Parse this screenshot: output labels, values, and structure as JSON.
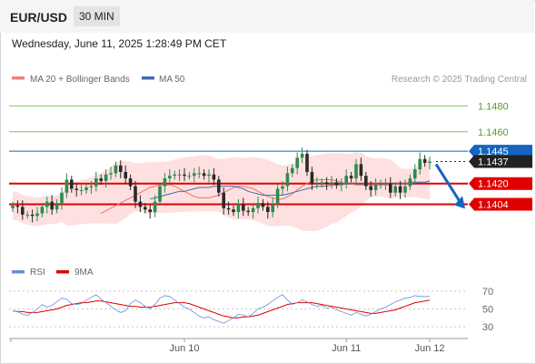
{
  "header": {
    "symbol": "EUR/USD",
    "timeframe": "30 MIN",
    "datetime": "Wednesday, June 11, 2025 1:28:49 PM CET"
  },
  "legend": {
    "bb_label": "MA 20 + Bollinger Bands",
    "ma50_label": "MA 50",
    "credit": "Research © 2025 Trading Central",
    "rsi_label": "RSI",
    "ma9_label": "9MA"
  },
  "colors": {
    "bb_fill": "#fdd5d5",
    "bb_legend": "#f08080",
    "ma20": "#f07070",
    "ma50": "#3a6db0",
    "up": "#2d8a4e",
    "down": "#2a2a2a",
    "resistance": "#e00000",
    "target": "#1565c0",
    "green_level": "#7ec850",
    "rsi_line": "#6a8fd8",
    "rsi_ma": "#e00000"
  },
  "chart_data": [
    {
      "type": "candlestick",
      "title": "",
      "ylim": [
        1.1365,
        1.1495
      ],
      "x_tick_labels": [
        "Jun 10",
        "Jun 11",
        "Jun 12"
      ],
      "x_tick_index": [
        35,
        68,
        85
      ],
      "levels": [
        {
          "value": 1.148,
          "label": "1.1480",
          "style": "green"
        },
        {
          "value": 1.146,
          "label": "1.1460",
          "style": "green"
        },
        {
          "value": 1.1445,
          "label": "1.1445",
          "style": "blue"
        },
        {
          "value": 1.1437,
          "label": "1.1437",
          "style": "current"
        },
        {
          "value": 1.142,
          "label": "1.1420",
          "style": "red"
        },
        {
          "value": 1.1404,
          "label": "1.1404",
          "style": "red"
        }
      ],
      "projection": {
        "from": 1.1435,
        "to": 1.1402
      },
      "close": [
        1.1403,
        1.1402,
        1.1396,
        1.1396,
        1.1395,
        1.1397,
        1.1402,
        1.1406,
        1.14,
        1.1405,
        1.1413,
        1.1423,
        1.1416,
        1.1415,
        1.1415,
        1.1417,
        1.1418,
        1.1424,
        1.1422,
        1.1427,
        1.1428,
        1.1434,
        1.1429,
        1.1424,
        1.1418,
        1.1406,
        1.1402,
        1.14,
        1.1398,
        1.1406,
        1.1418,
        1.1424,
        1.1426,
        1.1427,
        1.1427,
        1.1426,
        1.1426,
        1.1428,
        1.1428,
        1.1426,
        1.1427,
        1.1423,
        1.1413,
        1.1401,
        1.14,
        1.1398,
        1.1404,
        1.1399,
        1.1398,
        1.1401,
        1.1405,
        1.1402,
        1.1398,
        1.1404,
        1.1416,
        1.1418,
        1.1428,
        1.1432,
        1.144,
        1.1443,
        1.1429,
        1.142,
        1.142,
        1.1421,
        1.142,
        1.1421,
        1.1419,
        1.142,
        1.1426,
        1.1424,
        1.1435,
        1.1426,
        1.1418,
        1.1415,
        1.1419,
        1.142,
        1.142,
        1.1413,
        1.1418,
        1.1413,
        1.1418,
        1.1424,
        1.1431,
        1.1439,
        1.1436,
        1.1437
      ],
      "ma20": [
        1.1397,
        1.1399,
        1.1401,
        1.1403,
        1.1405,
        1.1407,
        1.1409,
        1.1411,
        1.1413,
        1.1415,
        1.1417,
        1.1418,
        1.1419,
        1.1419,
        1.1419,
        1.1418,
        1.1416,
        1.1414,
        1.1412,
        1.141,
        1.1409,
        1.1409,
        1.1409,
        1.141,
        1.1411,
        1.1413,
        1.1415,
        1.1417,
        1.1418,
        1.1418,
        1.1417,
        1.1416,
        1.1414,
        1.1412,
        1.141,
        1.1409,
        1.1408,
        1.1408,
        1.141,
        1.1412,
        1.1415,
        1.1418,
        1.142,
        1.1422,
        1.1423,
        1.1423,
        1.1423,
        1.1423,
        1.1422,
        1.1421,
        1.142,
        1.142,
        1.1419,
        1.1419,
        1.1419,
        1.1419,
        1.1419,
        1.1419,
        1.1419,
        1.1419,
        1.142,
        1.142,
        1.142,
        1.142,
        1.1421,
        1.1421,
        1.1421,
        1.1422
      ],
      "ma50": [
        1.1408,
        1.1409,
        1.141,
        1.1411,
        1.1412,
        1.1413,
        1.1414,
        1.1414,
        1.1415,
        1.1416,
        1.1417,
        1.1417,
        1.1417,
        1.1418,
        1.1418,
        1.1418,
        1.1418,
        1.1418,
        1.1417,
        1.1416,
        1.1414,
        1.1413,
        1.1412,
        1.1411,
        1.1411,
        1.1411,
        1.1411,
        1.1411,
        1.1412,
        1.1413,
        1.1414,
        1.1415,
        1.1416,
        1.1417,
        1.1418,
        1.1418,
        1.1418,
        1.1419,
        1.1419,
        1.1419,
        1.142,
        1.142,
        1.142,
        1.142,
        1.142,
        1.142,
        1.142,
        1.142,
        1.142,
        1.142,
        1.142,
        1.142,
        1.142,
        1.1421,
        1.1421,
        1.1421,
        1.1421,
        1.1422
      ]
    },
    {
      "type": "line",
      "title": "RSI",
      "ylim": [
        25,
        75
      ],
      "y_ticks": [
        30,
        50,
        70
      ],
      "series": [
        {
          "name": "RSI",
          "values": [
            48,
            47,
            44,
            43,
            46,
            50,
            55,
            52,
            54,
            58,
            62,
            61,
            56,
            55,
            56,
            60,
            63,
            66,
            61,
            57,
            53,
            49,
            46,
            48,
            56,
            60,
            57,
            53,
            50,
            55,
            62,
            65,
            64,
            60,
            56,
            52,
            50,
            46,
            42,
            40,
            41,
            38,
            36,
            34,
            37,
            40,
            44,
            43,
            41,
            45,
            50,
            52,
            55,
            59,
            63,
            66,
            60,
            55,
            57,
            60,
            58,
            55,
            53,
            54,
            51,
            52,
            49,
            47,
            45,
            43,
            46,
            44,
            42,
            44,
            47,
            50,
            52,
            55,
            58,
            60,
            62,
            63,
            65,
            64,
            64,
            64
          ]
        },
        {
          "name": "9MA",
          "values": [
            48,
            47,
            47,
            46,
            46,
            46,
            47,
            48,
            49,
            50,
            52,
            54,
            55,
            56,
            57,
            57,
            58,
            59,
            59,
            58,
            57,
            56,
            55,
            54,
            53,
            53,
            52,
            52,
            52,
            53,
            54,
            55,
            56,
            57,
            57,
            57,
            56,
            54,
            52,
            50,
            48,
            46,
            44,
            42,
            41,
            40,
            40,
            41,
            41,
            42,
            43,
            45,
            47,
            49,
            51,
            53,
            55,
            56,
            57,
            57,
            57,
            57,
            56,
            55,
            54,
            53,
            52,
            51,
            50,
            49,
            48,
            47,
            46,
            45,
            45,
            46,
            47,
            48,
            49,
            51,
            53,
            55,
            57,
            58,
            59,
            60
          ]
        }
      ]
    }
  ]
}
